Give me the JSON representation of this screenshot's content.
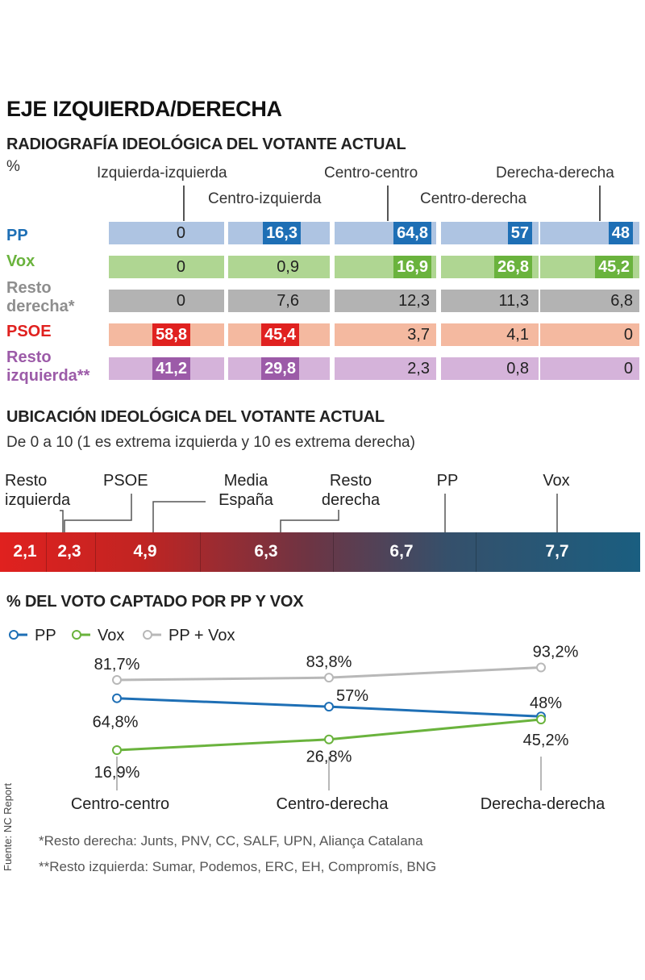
{
  "title": "EJE IZQUIERDA/DERECHA",
  "section1": {
    "heading": "RADIOGRAFÍA IDEOLÓGICA DEL VOTANTE ACTUAL",
    "unit": "%"
  },
  "section2": {
    "heading": "UBICACIÓN IDEOLÓGICA DEL VOTANTE ACTUAL",
    "subtitle": "De 0 a 10 (1 es extrema izquierda y 10 es extrema derecha)"
  },
  "section3": {
    "heading": "% DEL VOTO CAPTADO POR PP Y VOX",
    "legend": [
      "PP",
      "Vox",
      "PP + Vox"
    ]
  },
  "footnotes": [
    "*Resto derecha: Junts, PNV, CC, SALF, UPN, Aliança Catalana",
    "**Resto izquierda: Sumar, Podemos, ERC, EH, Compromís, BNG"
  ],
  "source": "Fuente: NC Report",
  "chart_data": [
    {
      "type": "table",
      "title": "RADIOGRAFÍA IDEOLÓGICA DEL VOTANTE ACTUAL",
      "unit": "%",
      "columns": [
        "Izquierda-izquierda",
        "Centro-izquierda",
        "Centro-centro",
        "Centro-derecha",
        "Derecha-derecha"
      ],
      "rows": [
        {
          "label": "PP",
          "color": "#1e6fb5",
          "bg": "#aec4e2",
          "values": [
            "0",
            "16,3",
            "64,8",
            "57",
            "48"
          ],
          "highlight": [
            false,
            true,
            true,
            true,
            true
          ]
        },
        {
          "label": "Vox",
          "color": "#6ab33d",
          "bg": "#afd692",
          "values": [
            "0",
            "0,9",
            "16,9",
            "26,8",
            "45,2"
          ],
          "highlight": [
            false,
            false,
            true,
            true,
            true
          ]
        },
        {
          "label": "Resto derecha*",
          "color": "#8e8e8e",
          "bg": "#b3b3b3",
          "values": [
            "0",
            "7,6",
            "12,3",
            "11,3",
            "6,8"
          ],
          "highlight": [
            false,
            false,
            false,
            false,
            false
          ]
        },
        {
          "label": "PSOE",
          "color": "#e0211f",
          "bg": "#f4b9a0",
          "values": [
            "58,8",
            "45,4",
            "3,7",
            "4,1",
            "0"
          ],
          "highlight": [
            true,
            true,
            false,
            false,
            false
          ]
        },
        {
          "label": "Resto izquierda**",
          "color": "#9c5ba8",
          "bg": "#d5b3da",
          "values": [
            "41,2",
            "29,8",
            "2,3",
            "0,8",
            "0"
          ],
          "highlight": [
            true,
            true,
            false,
            false,
            false
          ]
        }
      ]
    },
    {
      "type": "bar",
      "title": "UBICACIÓN IDEOLÓGICA DEL VOTANTE ACTUAL",
      "scale": [
        0,
        10
      ],
      "categories": [
        "Resto izquierda",
        "PSOE",
        "Media España",
        "Resto derecha",
        "PP",
        "Vox"
      ],
      "values": [
        2.1,
        2.3,
        4.9,
        6.3,
        6.7,
        7.7
      ],
      "labels": [
        "2,1",
        "2,3",
        "4,9",
        "6,3",
        "6,7",
        "7,7"
      ],
      "gradient": [
        "#e0211f",
        "#1a5e80"
      ]
    },
    {
      "type": "line",
      "title": "% DEL VOTO CAPTADO POR PP Y VOX",
      "categories": [
        "Centro-centro",
        "Centro-derecha",
        "Derecha-derecha"
      ],
      "series": [
        {
          "name": "PP",
          "color": "#1e6fb5",
          "values": [
            64.8,
            57,
            48
          ],
          "labels": [
            "64,8%",
            "57%",
            "48%"
          ]
        },
        {
          "name": "Vox",
          "color": "#6ab33d",
          "values": [
            16.9,
            26.8,
            45.2
          ],
          "labels": [
            "16,9%",
            "26,8%",
            "45,2%"
          ]
        },
        {
          "name": "PP + Vox",
          "color": "#b8b8b8",
          "values": [
            81.7,
            83.8,
            93.2
          ],
          "labels": [
            "81,7%",
            "83,8%",
            "93,2%"
          ]
        }
      ]
    }
  ]
}
